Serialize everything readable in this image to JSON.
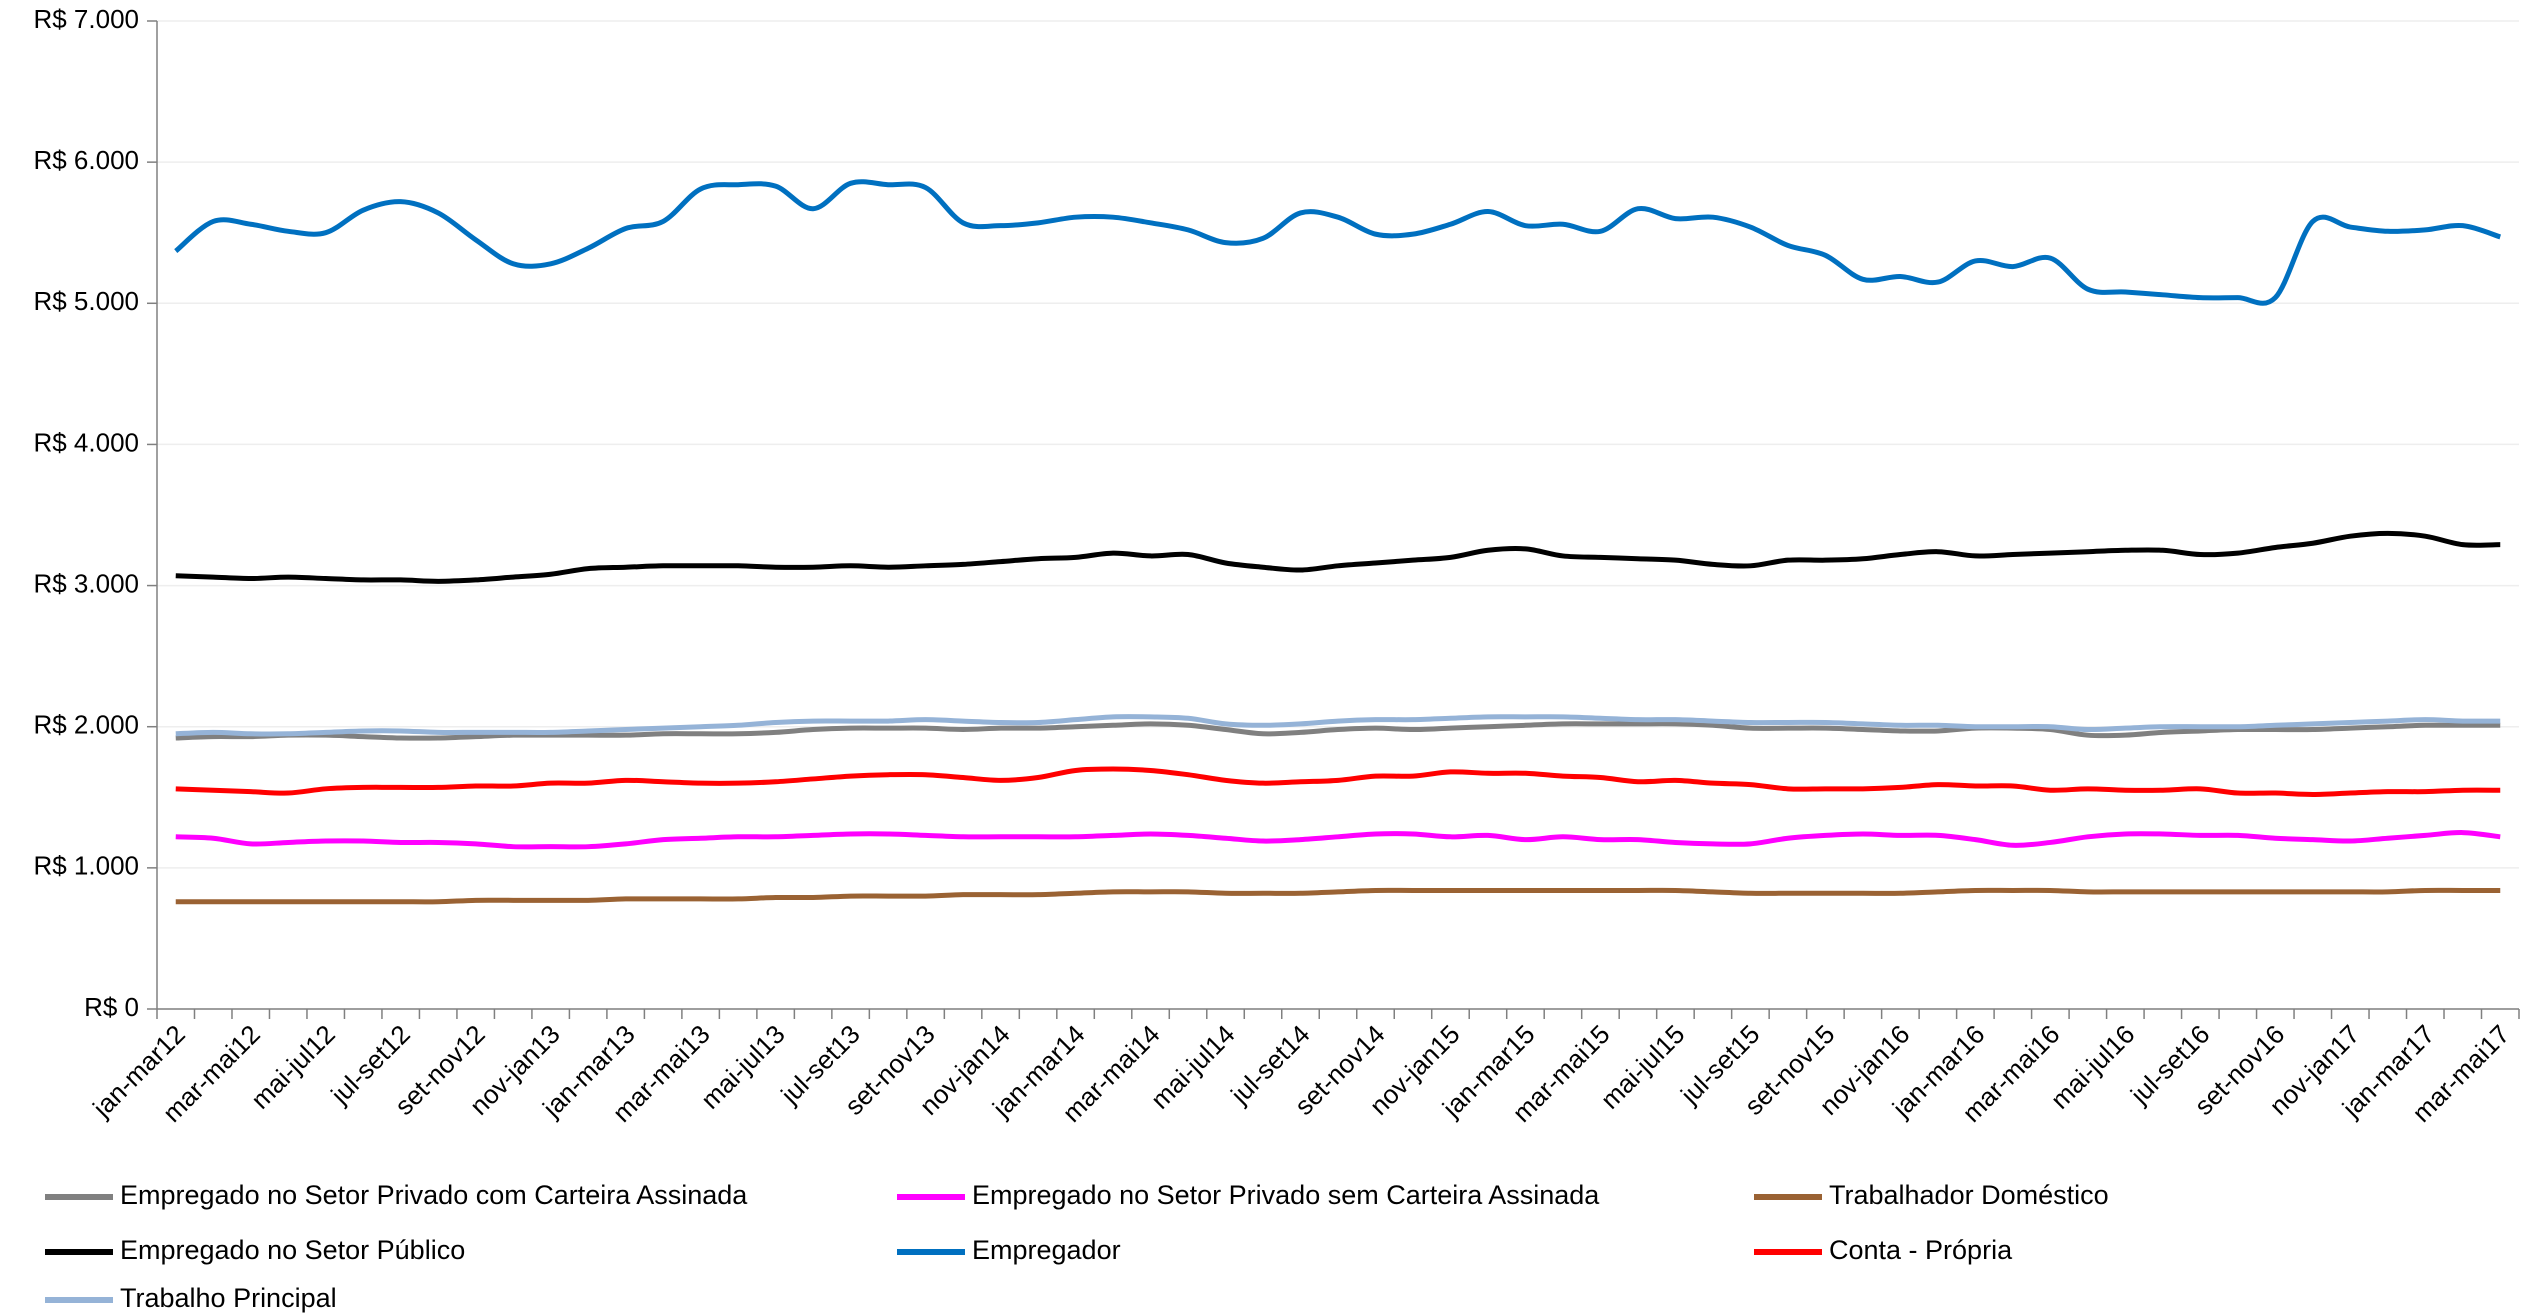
{
  "chart_data": {
    "type": "line",
    "categories": [
      "jan-mar12",
      null,
      "mar-mai12",
      null,
      "mai-jul12",
      null,
      "jul-set12",
      null,
      "set-nov12",
      null,
      "nov-jan13",
      null,
      "jan-mar13",
      null,
      "mar-mai13",
      null,
      "mai-jul13",
      null,
      "jul-set13",
      null,
      "set-nov13",
      null,
      "nov-jan14",
      null,
      "jan-mar14",
      null,
      "mar-mai14",
      null,
      "mai-jul14",
      null,
      "jul-set14",
      null,
      "set-nov14",
      null,
      "nov-jan15",
      null,
      "jan-mar15",
      null,
      "mar-mai15",
      null,
      "mai-jul15",
      null,
      "jul-set15",
      null,
      "set-nov15",
      null,
      "nov-jan16",
      null,
      "jan-mar16",
      null,
      "mar-mai16",
      null,
      "mai-jul16",
      null,
      "jul-set16",
      null,
      "set-nov16",
      null,
      "nov-jan17",
      null,
      "jan-mar17",
      null,
      "mar-mai17"
    ],
    "series": [
      {
        "name": "Empregado no Setor Privado com Carteira Assinada",
        "color": "#808080",
        "values": [
          1920,
          1930,
          1930,
          1940,
          1940,
          1930,
          1920,
          1920,
          1930,
          1940,
          1940,
          1940,
          1940,
          1950,
          1950,
          1950,
          1960,
          1980,
          1990,
          1990,
          1990,
          1980,
          1990,
          1990,
          2000,
          2010,
          2020,
          2010,
          1980,
          1950,
          1960,
          1980,
          1990,
          1980,
          1990,
          2000,
          2010,
          2020,
          2020,
          2020,
          2020,
          2010,
          1990,
          1990,
          1990,
          1980,
          1970,
          1970,
          1990,
          1990,
          1980,
          1940,
          1940,
          1960,
          1970,
          1980,
          1980,
          1980,
          1990,
          2000,
          2010,
          2010,
          2010
        ]
      },
      {
        "name": "Empregado no Setor Privado sem Carteira Assinada",
        "color": "#ff00ff",
        "values": [
          1220,
          1210,
          1170,
          1180,
          1190,
          1190,
          1180,
          1180,
          1170,
          1150,
          1150,
          1150,
          1170,
          1200,
          1210,
          1220,
          1220,
          1230,
          1240,
          1240,
          1230,
          1220,
          1220,
          1220,
          1220,
          1230,
          1240,
          1230,
          1210,
          1190,
          1200,
          1220,
          1240,
          1240,
          1220,
          1230,
          1200,
          1220,
          1200,
          1200,
          1180,
          1170,
          1170,
          1210,
          1230,
          1240,
          1230,
          1230,
          1200,
          1160,
          1180,
          1220,
          1240,
          1240,
          1230,
          1230,
          1210,
          1200,
          1190,
          1210,
          1230,
          1250,
          1220
        ]
      },
      {
        "name": "Trabalhador Doméstico",
        "color": "#9a6233",
        "values": [
          760,
          760,
          760,
          760,
          760,
          760,
          760,
          760,
          770,
          770,
          770,
          770,
          780,
          780,
          780,
          780,
          790,
          790,
          800,
          800,
          800,
          810,
          810,
          810,
          820,
          830,
          830,
          830,
          820,
          820,
          820,
          830,
          840,
          840,
          840,
          840,
          840,
          840,
          840,
          840,
          840,
          830,
          820,
          820,
          820,
          820,
          820,
          830,
          840,
          840,
          840,
          830,
          830,
          830,
          830,
          830,
          830,
          830,
          830,
          830,
          840,
          840,
          840
        ]
      },
      {
        "name": "Empregado no Setor Público",
        "color": "#000000",
        "values": [
          3070,
          3060,
          3050,
          3060,
          3050,
          3040,
          3040,
          3030,
          3040,
          3060,
          3080,
          3120,
          3130,
          3140,
          3140,
          3140,
          3130,
          3130,
          3140,
          3130,
          3140,
          3150,
          3170,
          3190,
          3200,
          3230,
          3210,
          3220,
          3160,
          3130,
          3110,
          3140,
          3160,
          3180,
          3200,
          3250,
          3260,
          3210,
          3200,
          3190,
          3180,
          3150,
          3140,
          3180,
          3180,
          3190,
          3220,
          3240,
          3210,
          3220,
          3230,
          3240,
          3250,
          3250,
          3220,
          3230,
          3270,
          3300,
          3350,
          3370,
          3350,
          3290,
          3290
        ]
      },
      {
        "name": "Empregador",
        "color": "#0070c0",
        "values": [
          5370,
          5580,
          5560,
          5510,
          5500,
          5660,
          5720,
          5640,
          5450,
          5280,
          5280,
          5390,
          5530,
          5580,
          5810,
          5840,
          5830,
          5670,
          5850,
          5840,
          5820,
          5570,
          5550,
          5570,
          5610,
          5610,
          5570,
          5520,
          5430,
          5460,
          5640,
          5610,
          5490,
          5490,
          5560,
          5650,
          5550,
          5560,
          5510,
          5670,
          5600,
          5610,
          5540,
          5410,
          5340,
          5170,
          5190,
          5150,
          5300,
          5260,
          5320,
          5100,
          5080,
          5060,
          5040,
          5040,
          5040,
          5580,
          5540,
          5510,
          5520,
          5550,
          5470
        ]
      },
      {
        "name": "Conta - Própria",
        "color": "#ff0000",
        "values": [
          1560,
          1550,
          1540,
          1530,
          1560,
          1570,
          1570,
          1570,
          1580,
          1580,
          1600,
          1600,
          1620,
          1610,
          1600,
          1600,
          1610,
          1630,
          1650,
          1660,
          1660,
          1640,
          1620,
          1640,
          1690,
          1700,
          1690,
          1660,
          1620,
          1600,
          1610,
          1620,
          1650,
          1650,
          1680,
          1670,
          1670,
          1650,
          1640,
          1610,
          1620,
          1600,
          1590,
          1560,
          1560,
          1560,
          1570,
          1590,
          1580,
          1580,
          1550,
          1560,
          1550,
          1550,
          1560,
          1530,
          1530,
          1520,
          1530,
          1540,
          1540,
          1550,
          1550
        ]
      },
      {
        "name": "Trabalho Principal",
        "color": "#95b3d7",
        "values": [
          1950,
          1960,
          1950,
          1950,
          1960,
          1970,
          1970,
          1960,
          1960,
          1960,
          1960,
          1970,
          1980,
          1990,
          2000,
          2010,
          2030,
          2040,
          2040,
          2040,
          2050,
          2040,
          2030,
          2030,
          2050,
          2070,
          2070,
          2060,
          2020,
          2010,
          2020,
          2040,
          2050,
          2050,
          2060,
          2070,
          2070,
          2070,
          2060,
          2050,
          2050,
          2040,
          2030,
          2030,
          2030,
          2020,
          2010,
          2010,
          2000,
          2000,
          2000,
          1980,
          1990,
          2000,
          2000,
          2000,
          2010,
          2020,
          2030,
          2040,
          2050,
          2040,
          2040
        ]
      }
    ],
    "ylim": [
      0,
      7000
    ],
    "yticks": [
      {
        "value": 0,
        "label": "R$ 0"
      },
      {
        "value": 1000,
        "label": "R$ 1.000"
      },
      {
        "value": 2000,
        "label": "R$ 2.000"
      },
      {
        "value": 3000,
        "label": "R$ 3.000"
      },
      {
        "value": 4000,
        "label": "R$ 4.000"
      },
      {
        "value": 5000,
        "label": "R$ 5.000"
      },
      {
        "value": 6000,
        "label": "R$ 6.000"
      },
      {
        "value": 7000,
        "label": "R$ 7.000"
      }
    ],
    "grid": true,
    "legend_position": "bottom"
  }
}
